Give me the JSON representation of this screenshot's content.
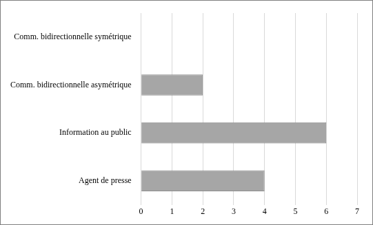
{
  "chart_data": {
    "type": "bar",
    "orientation": "horizontal",
    "categories": [
      "Comm. bidirectionnelle symétrique",
      "Comm. bidirectionnelle asymétrique",
      "Information au public",
      "Agent de presse"
    ],
    "values": [
      0,
      2,
      6,
      4
    ],
    "color": "#a6a6a6",
    "xlim": [
      0,
      7
    ],
    "xticks": [
      0,
      1,
      2,
      3,
      4,
      5,
      6,
      7
    ],
    "grid": true
  }
}
